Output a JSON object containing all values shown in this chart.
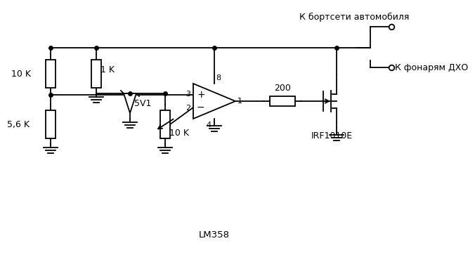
{
  "background_color": "#ffffff",
  "line_color": "#000000",
  "text_color": "#000000",
  "labels": {
    "R1": "10 K",
    "R2": "1 K",
    "R3": "5,6 K",
    "D1": "5V1",
    "R4": "10 K",
    "R5": "200",
    "Q1": "IRF1010E",
    "IC1": "LM358",
    "V1": "К бортсети автомобиля",
    "V2": "К фонарям ДХО",
    "p8": "8",
    "p3": "3",
    "p2": "2",
    "p1": "1",
    "p4": "4"
  },
  "YT": 285,
  "YJ": 218,
  "YOAP": 218,
  "YOAM": 200,
  "XR1": 55,
  "XR2": 120,
  "XZD": 168,
  "XR4": 218,
  "XOA_L": 258,
  "XOA_R": 318,
  "XR5_C": 385,
  "XMOS_G": 443,
  "XMOS_C": 460,
  "XVCC": 510,
  "R1cy": 248,
  "R3cy": 176,
  "R2cy": 248,
  "R4cy": 176,
  "RHH": 20,
  "RHW": 7,
  "lead": 8
}
